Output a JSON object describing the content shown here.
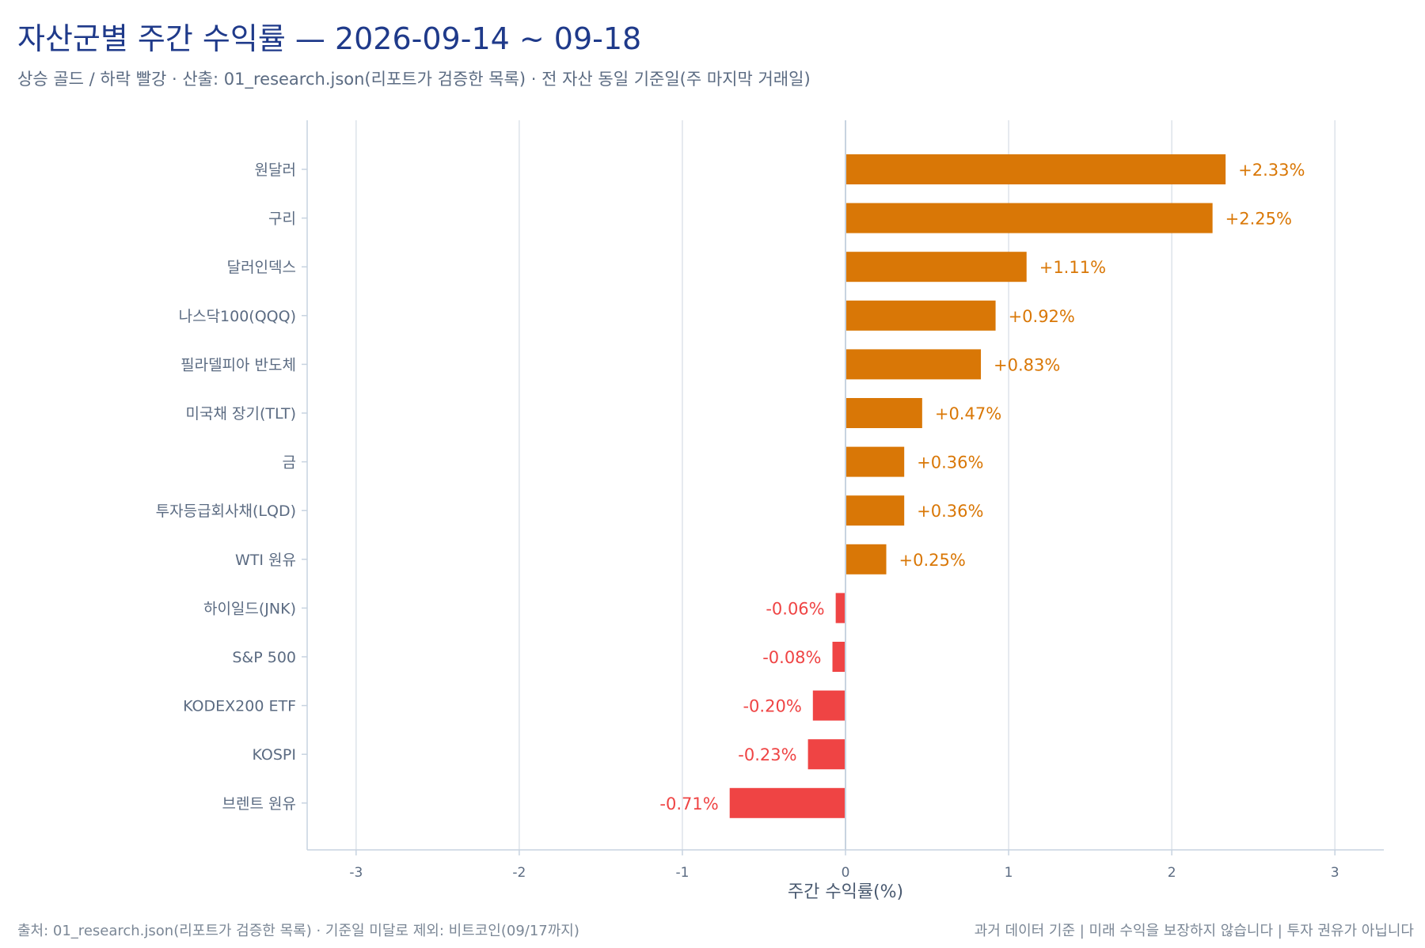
{
  "title": "자산군별 주간 수익률 — 2026-09-14 ~ 09-18",
  "subtitle": "상승 골드 / 하락 빨강 · 산출: 01_research.json(리포트가 검증한 목록) · 전 자산 동일 기준일(주 마지막 거래일)",
  "footer_left": "출처: 01_research.json(리포트가 검증한 목록) · 기준일 미달로 제외: 비트코인(09/17까지)",
  "footer_right": "과거 데이터 기준 | 미래 수익을 보장하지 않습니다 | 투자 권유가 아닙니다",
  "colors": {
    "positive": "#d97706",
    "negative": "#ef4444",
    "axis": "#c7d3e0",
    "grid": "#dde3ea",
    "zero_line": "#c7d3e0",
    "tick_text": "#5b6b82"
  },
  "chart_data": {
    "type": "bar",
    "orientation": "horizontal",
    "xlabel": "주간 수익률(%)",
    "ylabel": "",
    "xlim": [
      -3.3,
      3.3
    ],
    "xticks": [
      -3,
      -2,
      -1,
      0,
      1,
      2,
      3
    ],
    "xtick_labels": [
      "-3",
      "-2",
      "-1",
      "0",
      "1",
      "2",
      "3"
    ],
    "grid": true,
    "categories": [
      "원달러",
      "구리",
      "달러인덱스",
      "나스닥100(QQQ)",
      "필라델피아 반도체",
      "미국채 장기(TLT)",
      "금",
      "투자등급회사채(LQD)",
      "WTI 원유",
      "하이일드(JNK)",
      "S&P 500",
      "KODEX200 ETF",
      "KOSPI",
      "브렌트 원유"
    ],
    "values": [
      2.33,
      2.25,
      1.11,
      0.92,
      0.83,
      0.47,
      0.36,
      0.36,
      0.25,
      -0.06,
      -0.08,
      -0.2,
      -0.23,
      -0.71
    ],
    "value_labels": [
      "+2.33%",
      "+2.25%",
      "+1.11%",
      "+0.92%",
      "+0.83%",
      "+0.47%",
      "+0.36%",
      "+0.36%",
      "+0.25%",
      "-0.06%",
      "-0.08%",
      "-0.20%",
      "-0.23%",
      "-0.71%"
    ]
  }
}
